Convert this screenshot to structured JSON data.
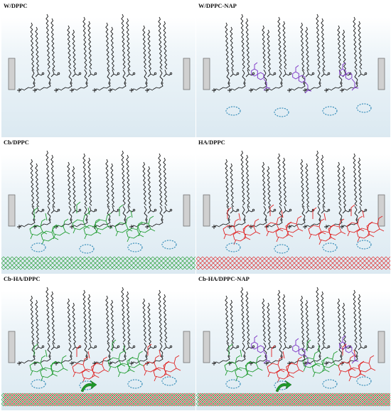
{
  "panels": [
    {
      "title": "W/DPPC",
      "naproxen": false,
      "substrate": "none",
      "pectin": "none"
    },
    {
      "title": "W/DPPC-NAP",
      "naproxen": true,
      "substrate": "none",
      "pectin": "none"
    },
    {
      "title": "Cb/DPPC",
      "naproxen": false,
      "substrate": "green",
      "pectin": "chitosan"
    },
    {
      "title": "HA/DPPC",
      "naproxen": false,
      "substrate": "red",
      "pectin": "hyaluronic"
    },
    {
      "title": "Cb-HA/DPPC",
      "naproxen": false,
      "substrate": "mixed",
      "pectin": "both"
    },
    {
      "title": "Cb-HA/DPPC-NAP",
      "naproxen": true,
      "substrate": "mixed",
      "pectin": "both"
    }
  ],
  "colors": {
    "lipid": "#1a1a1a",
    "naproxen": "#7a2fc4",
    "chitosan": "#1a9a2a",
    "hyaluronic": "#e02020",
    "hbond": "#1e7fb0",
    "barrier": "#d0d0d0",
    "arrow": "#1f9a2a"
  },
  "icons": [
    "barrier-block",
    "phospholipid",
    "naproxen-molecule",
    "polysaccharide-chain",
    "hydrogen-bond-ellipse",
    "green-arrow"
  ]
}
